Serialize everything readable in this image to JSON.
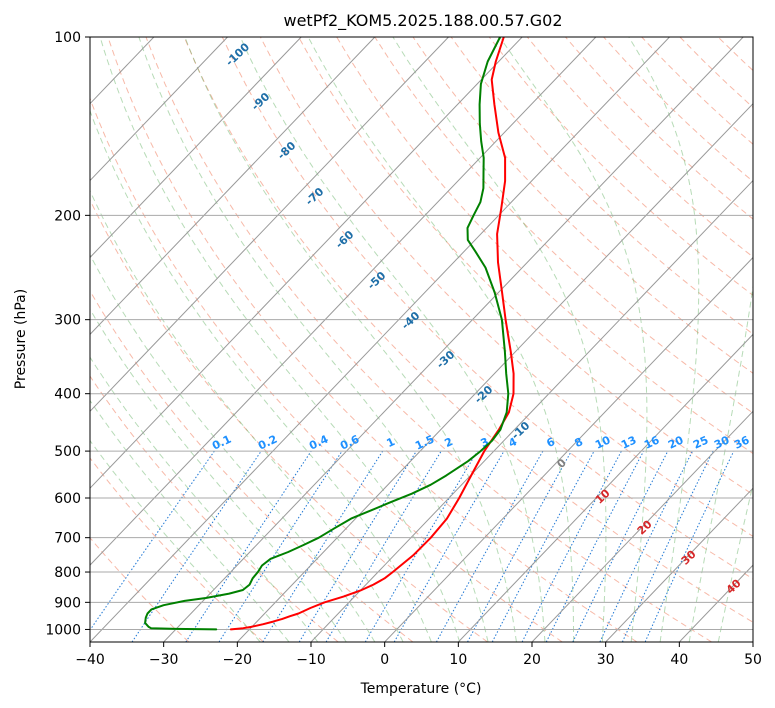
{
  "chart_data": {
    "type": "line",
    "subtype": "skew-t log-p",
    "title": "wetPf2_KOM5.2025.188.00.57.G02",
    "xlabel": "Temperature (°C)",
    "ylabel": "Pressure (hPa)",
    "xlim": [
      -40,
      50
    ],
    "ylim": [
      1050,
      100
    ],
    "y_scale": "log",
    "grid": true,
    "x_ticks": [
      -40,
      -30,
      -20,
      -10,
      0,
      10,
      20,
      30,
      40,
      50
    ],
    "y_ticks": [
      100,
      200,
      300,
      400,
      500,
      600,
      700,
      800,
      900,
      1000
    ],
    "colors": {
      "temperature": "#ff0000",
      "dewpoint": "#008000",
      "dry_adiabat": "#f08060",
      "moist_adiabat": "#60b060",
      "mixing_ratio": "#1f77d4",
      "isotherm": "#999999",
      "isotherm_label": "#1f6fa8",
      "mixing_label": "#1e90ff",
      "warm_label": "#d62728"
    },
    "series": [
      {
        "role": "temperature",
        "color": "#ff0000",
        "points": [
          [
            1000,
            -22.5
          ],
          [
            995,
            -21
          ],
          [
            990,
            -20.1
          ],
          [
            980,
            -18.8
          ],
          [
            970,
            -17.8
          ],
          [
            960,
            -16.9
          ],
          [
            950,
            -16.2
          ],
          [
            940,
            -15.4
          ],
          [
            920,
            -14.5
          ],
          [
            900,
            -13.3
          ],
          [
            880,
            -11.5
          ],
          [
            860,
            -10.0
          ],
          [
            840,
            -9.0
          ],
          [
            820,
            -8.3
          ],
          [
            800,
            -8.0
          ],
          [
            750,
            -7.4
          ],
          [
            700,
            -7.3
          ],
          [
            650,
            -7.6
          ],
          [
            600,
            -8.6
          ],
          [
            550,
            -9.9
          ],
          [
            500,
            -11.3
          ],
          [
            460,
            -12.1
          ],
          [
            430,
            -13.0
          ],
          [
            400,
            -14.8
          ],
          [
            370,
            -17.4
          ],
          [
            340,
            -20.6
          ],
          [
            300,
            -25.5
          ],
          [
            270,
            -29.5
          ],
          [
            240,
            -34.0
          ],
          [
            215,
            -37.8
          ],
          [
            195,
            -40.5
          ],
          [
            175,
            -43.6
          ],
          [
            160,
            -46.6
          ],
          [
            145,
            -50.8
          ],
          [
            130,
            -55.0
          ],
          [
            118,
            -58.6
          ],
          [
            110,
            -60.4
          ],
          [
            100,
            -62.5
          ]
        ]
      },
      {
        "role": "dewpoint",
        "color": "#008000",
        "points": [
          [
            1000,
            -24.5
          ],
          [
            998,
            -30
          ],
          [
            995,
            -33.5
          ],
          [
            990,
            -34
          ],
          [
            975,
            -35
          ],
          [
            955,
            -35.6
          ],
          [
            940,
            -35.9
          ],
          [
            925,
            -35.9
          ],
          [
            910,
            -34.8
          ],
          [
            895,
            -32.5
          ],
          [
            885,
            -30.0
          ],
          [
            870,
            -27.4
          ],
          [
            858,
            -26.0
          ],
          [
            840,
            -25.8
          ],
          [
            820,
            -26.2
          ],
          [
            800,
            -26.3
          ],
          [
            780,
            -26.6
          ],
          [
            760,
            -26.3
          ],
          [
            740,
            -24.8
          ],
          [
            720,
            -23.6
          ],
          [
            700,
            -22.5
          ],
          [
            675,
            -21.6
          ],
          [
            650,
            -20.6
          ],
          [
            630,
            -19.0
          ],
          [
            610,
            -17.4
          ],
          [
            590,
            -15.6
          ],
          [
            570,
            -14.2
          ],
          [
            550,
            -13.3
          ],
          [
            520,
            -12.2
          ],
          [
            500,
            -11.8
          ],
          [
            480,
            -11.6
          ],
          [
            460,
            -11.9
          ],
          [
            430,
            -13.3
          ],
          [
            400,
            -15.5
          ],
          [
            370,
            -18.4
          ],
          [
            340,
            -21.4
          ],
          [
            300,
            -26.0
          ],
          [
            270,
            -30.5
          ],
          [
            245,
            -35.0
          ],
          [
            230,
            -38.5
          ],
          [
            220,
            -41.0
          ],
          [
            210,
            -42.6
          ],
          [
            200,
            -43.4
          ],
          [
            190,
            -44.2
          ],
          [
            180,
            -45.6
          ],
          [
            170,
            -47.5
          ],
          [
            160,
            -49.5
          ],
          [
            150,
            -52.0
          ],
          [
            140,
            -54.5
          ],
          [
            130,
            -57.0
          ],
          [
            120,
            -59.5
          ],
          [
            110,
            -61.5
          ],
          [
            100,
            -63.0
          ]
        ]
      }
    ],
    "isotherm_labels": [
      "-100",
      "-90",
      "-80",
      "-70",
      "-60",
      "-50",
      "-40",
      "-30",
      "-20",
      "-10",
      "0",
      "10",
      "20",
      "30",
      "40"
    ],
    "mixing_ratio_labels": [
      "0.1",
      "0.2",
      "0.4",
      "0.6",
      "1",
      "1.5",
      "2",
      "3",
      "4",
      "6",
      "8",
      "10",
      "13",
      "16",
      "20",
      "25",
      "30",
      "36"
    ],
    "mixing_ratio_values": [
      0.1,
      0.2,
      0.4,
      0.6,
      1,
      1.5,
      2,
      3,
      4,
      6,
      8,
      10,
      13,
      16,
      20,
      25,
      30,
      36
    ]
  }
}
